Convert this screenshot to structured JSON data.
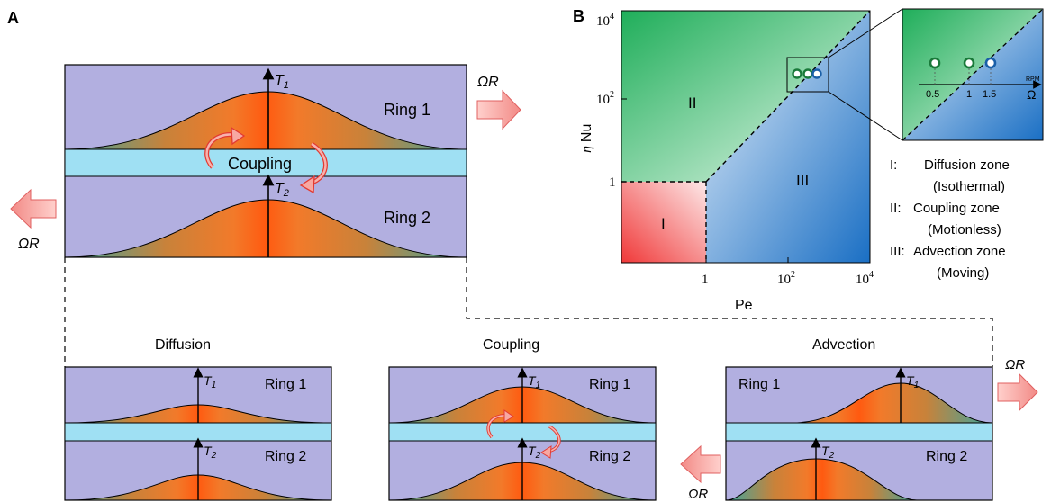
{
  "panel_a": {
    "label": "A",
    "main": {
      "t1": "T",
      "t1_sub": "1",
      "t2": "T",
      "t2_sub": "2",
      "ring1": "Ring 1",
      "ring2": "Ring 2",
      "coupling": "Coupling",
      "omega_r_right": "ΩR",
      "omega_r_left": "ΩR"
    },
    "small_panels": [
      {
        "title": "Diffusion",
        "ring1": "Ring 1",
        "ring2": "Ring 2",
        "t1": "T",
        "t1_sub": "1",
        "t2": "T",
        "t2_sub": "2"
      },
      {
        "title": "Coupling",
        "ring1": "Ring 1",
        "ring2": "Ring 2",
        "t1": "T",
        "t1_sub": "1",
        "t2": "T",
        "t2_sub": "2"
      },
      {
        "title": "Advection",
        "ring1": "Ring 1",
        "ring2": "Ring 2",
        "t1": "T",
        "t1_sub": "1",
        "t2": "T",
        "t2_sub": "2",
        "omega_r_right": "ΩR",
        "omega_r_left": "ΩR"
      }
    ]
  },
  "panel_b": {
    "label": "B",
    "xlabel": "Pe",
    "ylabel_eta": "η",
    "ylabel_nu": "Nu",
    "x_ticks": [
      {
        "base": "1",
        "exp": ""
      },
      {
        "base": "10",
        "exp": "2"
      },
      {
        "base": "10",
        "exp": "4"
      }
    ],
    "y_ticks": [
      {
        "base": "1",
        "exp": ""
      },
      {
        "base": "10",
        "exp": "2"
      },
      {
        "base": "10",
        "exp": "4"
      }
    ],
    "zones": {
      "I": "I",
      "II": "II",
      "III": "III"
    },
    "inset": {
      "axis_label": "Ω",
      "axis_unit": "RPM",
      "ticks": [
        "0.5",
        "1",
        "1.5"
      ]
    },
    "legend": [
      {
        "numeral": "I:",
        "name": "Diffusion zone",
        "state": "(Isothermal)"
      },
      {
        "numeral": "II:",
        "name": "Coupling zone",
        "state": "(Motionless)"
      },
      {
        "numeral": "III:",
        "name": "Advection zone",
        "state": "(Moving)"
      }
    ],
    "colors": {
      "coupling_zone": "#1fae5a",
      "advection_zone": "#1a6fc4",
      "diffusion_zone": "#f04040",
      "point_green": "#1a7a3a",
      "point_blue": "#1a5fa8"
    }
  }
}
